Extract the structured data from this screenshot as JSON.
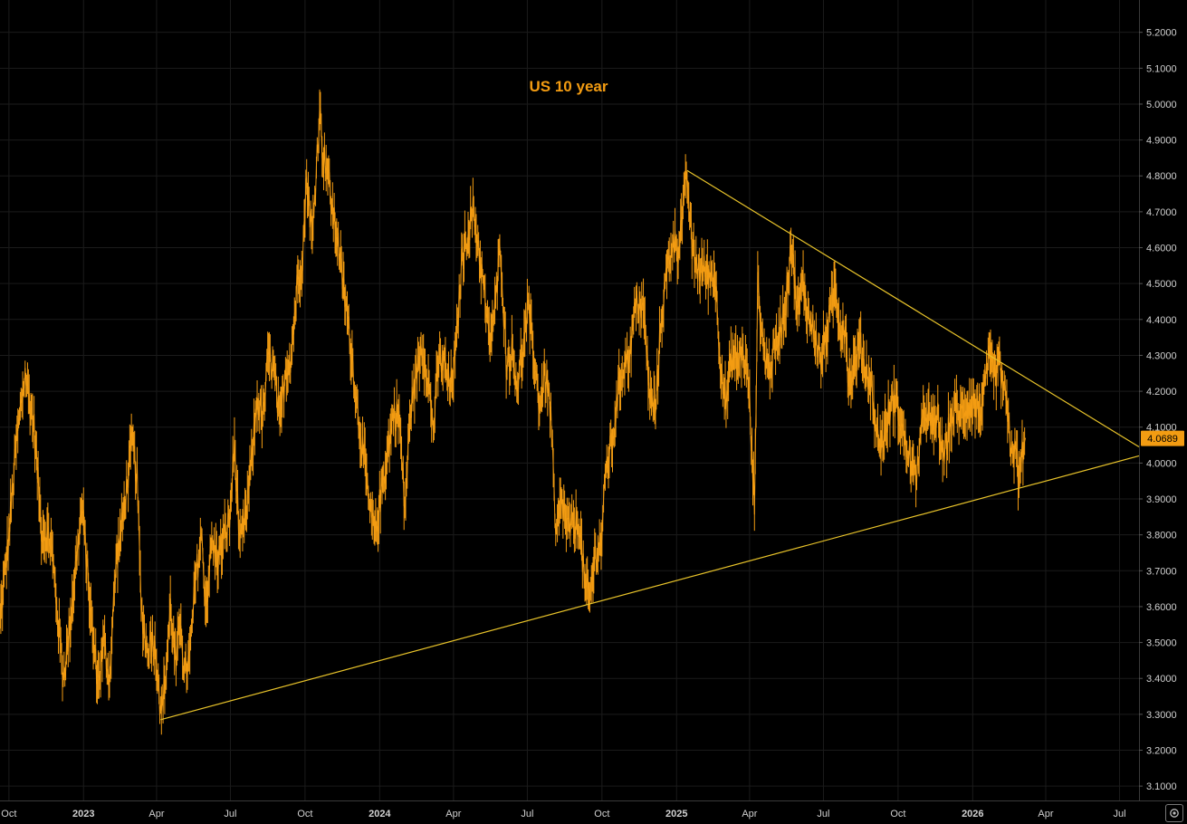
{
  "colors": {
    "background": "#000000",
    "grid": "#1b1b1b",
    "price_line": "#f39c12",
    "trendline": "#e8c32a",
    "title": "#f39c12",
    "last_price_bg": "#f39c12",
    "last_price_text": "#000000"
  },
  "chart_data": {
    "type": "line",
    "title": "US 10 year",
    "xlabel": "",
    "ylabel": "",
    "ylim": [
      3.06,
      5.29
    ],
    "xlim": [
      "2022-09-20",
      "2026-07-25"
    ],
    "y_ticks": [
      "3.1000",
      "3.2000",
      "3.3000",
      "3.4000",
      "3.5000",
      "3.6000",
      "3.7000",
      "3.8000",
      "3.9000",
      "4.0000",
      "4.1000",
      "4.2000",
      "4.3000",
      "4.4000",
      "4.5000",
      "4.6000",
      "4.7000",
      "4.8000",
      "4.9000",
      "5.0000",
      "5.1000",
      "5.2000"
    ],
    "x_ticks": [
      {
        "date": "2022-10-01",
        "label": "Oct",
        "bold": false
      },
      {
        "date": "2023-01-01",
        "label": "2023",
        "bold": true
      },
      {
        "date": "2023-04-01",
        "label": "Apr",
        "bold": false
      },
      {
        "date": "2023-07-01",
        "label": "Jul",
        "bold": false
      },
      {
        "date": "2023-10-01",
        "label": "Oct",
        "bold": false
      },
      {
        "date": "2024-01-01",
        "label": "2024",
        "bold": true
      },
      {
        "date": "2024-04-01",
        "label": "Apr",
        "bold": false
      },
      {
        "date": "2024-07-01",
        "label": "Jul",
        "bold": false
      },
      {
        "date": "2024-10-01",
        "label": "Oct",
        "bold": false
      },
      {
        "date": "2025-01-01",
        "label": "2025",
        "bold": true
      },
      {
        "date": "2025-04-01",
        "label": "Apr",
        "bold": false
      },
      {
        "date": "2025-07-01",
        "label": "Jul",
        "bold": false
      },
      {
        "date": "2025-10-01",
        "label": "Oct",
        "bold": false
      },
      {
        "date": "2026-01-01",
        "label": "2026",
        "bold": true
      },
      {
        "date": "2026-04-01",
        "label": "Apr",
        "bold": false
      },
      {
        "date": "2026-07-01",
        "label": "Jul",
        "bold": false
      }
    ],
    "last_value": "4.0689",
    "series": [
      {
        "name": "US 10 year",
        "points": [
          [
            "2022-09-20",
            3.56
          ],
          [
            "2022-10-01",
            3.8
          ],
          [
            "2022-10-10",
            4.05
          ],
          [
            "2022-10-21",
            4.25
          ],
          [
            "2022-11-01",
            4.1
          ],
          [
            "2022-11-10",
            3.82
          ],
          [
            "2022-11-22",
            3.78
          ],
          [
            "2022-12-01",
            3.55
          ],
          [
            "2022-12-07",
            3.41
          ],
          [
            "2022-12-13",
            3.5
          ],
          [
            "2022-12-20",
            3.66
          ],
          [
            "2022-12-30",
            3.88
          ],
          [
            "2023-01-05",
            3.72
          ],
          [
            "2023-01-12",
            3.52
          ],
          [
            "2023-01-19",
            3.39
          ],
          [
            "2023-01-26",
            3.5
          ],
          [
            "2023-02-02",
            3.4
          ],
          [
            "2023-02-10",
            3.72
          ],
          [
            "2023-02-17",
            3.82
          ],
          [
            "2023-02-24",
            3.95
          ],
          [
            "2023-03-02",
            4.06
          ],
          [
            "2023-03-08",
            3.96
          ],
          [
            "2023-03-13",
            3.6
          ],
          [
            "2023-03-20",
            3.48
          ],
          [
            "2023-03-27",
            3.52
          ],
          [
            "2023-04-03",
            3.42
          ],
          [
            "2023-04-06",
            3.29
          ],
          [
            "2023-04-12",
            3.4
          ],
          [
            "2023-04-18",
            3.6
          ],
          [
            "2023-04-25",
            3.43
          ],
          [
            "2023-05-01",
            3.58
          ],
          [
            "2023-05-05",
            3.4
          ],
          [
            "2023-05-12",
            3.46
          ],
          [
            "2023-05-19",
            3.67
          ],
          [
            "2023-05-26",
            3.8
          ],
          [
            "2023-06-01",
            3.6
          ],
          [
            "2023-06-08",
            3.78
          ],
          [
            "2023-06-15",
            3.73
          ],
          [
            "2023-06-22",
            3.78
          ],
          [
            "2023-06-30",
            3.84
          ],
          [
            "2023-07-06",
            4.05
          ],
          [
            "2023-07-13",
            3.76
          ],
          [
            "2023-07-20",
            3.85
          ],
          [
            "2023-07-27",
            4.0
          ],
          [
            "2023-08-03",
            4.18
          ],
          [
            "2023-08-10",
            4.12
          ],
          [
            "2023-08-17",
            4.3
          ],
          [
            "2023-08-24",
            4.25
          ],
          [
            "2023-08-31",
            4.1
          ],
          [
            "2023-09-07",
            4.26
          ],
          [
            "2023-09-14",
            4.3
          ],
          [
            "2023-09-21",
            4.49
          ],
          [
            "2023-09-28",
            4.58
          ],
          [
            "2023-10-03",
            4.8
          ],
          [
            "2023-10-10",
            4.62
          ],
          [
            "2023-10-19",
            4.99
          ],
          [
            "2023-10-23",
            4.86
          ],
          [
            "2023-10-27",
            4.84
          ],
          [
            "2023-11-01",
            4.75
          ],
          [
            "2023-11-06",
            4.67
          ],
          [
            "2023-11-10",
            4.63
          ],
          [
            "2023-11-15",
            4.53
          ],
          [
            "2023-11-22",
            4.41
          ],
          [
            "2023-11-29",
            4.27
          ],
          [
            "2023-12-06",
            4.12
          ],
          [
            "2023-12-13",
            4.01
          ],
          [
            "2023-12-20",
            3.86
          ],
          [
            "2023-12-27",
            3.8
          ],
          [
            "2024-01-03",
            3.92
          ],
          [
            "2024-01-10",
            4.02
          ],
          [
            "2024-01-18",
            4.14
          ],
          [
            "2024-01-25",
            4.13
          ],
          [
            "2024-02-01",
            3.87
          ],
          [
            "2024-02-08",
            4.15
          ],
          [
            "2024-02-15",
            4.24
          ],
          [
            "2024-02-22",
            4.33
          ],
          [
            "2024-02-29",
            4.25
          ],
          [
            "2024-03-07",
            4.09
          ],
          [
            "2024-03-14",
            4.29
          ],
          [
            "2024-03-21",
            4.27
          ],
          [
            "2024-03-28",
            4.2
          ],
          [
            "2024-04-04",
            4.31
          ],
          [
            "2024-04-11",
            4.56
          ],
          [
            "2024-04-18",
            4.64
          ],
          [
            "2024-04-25",
            4.7
          ],
          [
            "2024-05-01",
            4.62
          ],
          [
            "2024-05-08",
            4.49
          ],
          [
            "2024-05-15",
            4.34
          ],
          [
            "2024-05-22",
            4.42
          ],
          [
            "2024-05-29",
            4.61
          ],
          [
            "2024-06-05",
            4.28
          ],
          [
            "2024-06-12",
            4.31
          ],
          [
            "2024-06-19",
            4.22
          ],
          [
            "2024-06-26",
            4.32
          ],
          [
            "2024-07-02",
            4.43
          ],
          [
            "2024-07-09",
            4.3
          ],
          [
            "2024-07-16",
            4.16
          ],
          [
            "2024-07-23",
            4.25
          ],
          [
            "2024-07-30",
            4.14
          ],
          [
            "2024-08-05",
            3.78
          ],
          [
            "2024-08-12",
            3.9
          ],
          [
            "2024-08-19",
            3.82
          ],
          [
            "2024-08-26",
            3.82
          ],
          [
            "2024-09-03",
            3.84
          ],
          [
            "2024-09-10",
            3.65
          ],
          [
            "2024-09-16",
            3.62
          ],
          [
            "2024-09-23",
            3.75
          ],
          [
            "2024-09-30",
            3.78
          ],
          [
            "2024-10-07",
            4.0
          ],
          [
            "2024-10-14",
            4.06
          ],
          [
            "2024-10-21",
            4.2
          ],
          [
            "2024-10-28",
            4.28
          ],
          [
            "2024-11-04",
            4.3
          ],
          [
            "2024-11-11",
            4.43
          ],
          [
            "2024-11-15",
            4.45
          ],
          [
            "2024-11-22",
            4.41
          ],
          [
            "2024-11-29",
            4.18
          ],
          [
            "2024-12-06",
            4.15
          ],
          [
            "2024-12-13",
            4.4
          ],
          [
            "2024-12-20",
            4.53
          ],
          [
            "2024-12-27",
            4.62
          ],
          [
            "2025-01-03",
            4.6
          ],
          [
            "2025-01-08",
            4.69
          ],
          [
            "2025-01-14",
            4.79
          ],
          [
            "2025-01-20",
            4.6
          ],
          [
            "2025-01-27",
            4.54
          ],
          [
            "2025-02-03",
            4.54
          ],
          [
            "2025-02-10",
            4.52
          ],
          [
            "2025-02-17",
            4.53
          ],
          [
            "2025-02-24",
            4.29
          ],
          [
            "2025-03-03",
            4.16
          ],
          [
            "2025-03-10",
            4.3
          ],
          [
            "2025-03-17",
            4.28
          ],
          [
            "2025-03-24",
            4.31
          ],
          [
            "2025-03-31",
            4.22
          ],
          [
            "2025-04-04",
            4.0
          ],
          [
            "2025-04-07",
            3.9
          ],
          [
            "2025-04-11",
            4.49
          ],
          [
            "2025-04-18",
            4.32
          ],
          [
            "2025-04-25",
            4.26
          ],
          [
            "2025-05-02",
            4.31
          ],
          [
            "2025-05-09",
            4.38
          ],
          [
            "2025-05-16",
            4.45
          ],
          [
            "2025-05-22",
            4.62
          ],
          [
            "2025-05-30",
            4.42
          ],
          [
            "2025-06-06",
            4.5
          ],
          [
            "2025-06-13",
            4.4
          ],
          [
            "2025-06-20",
            4.37
          ],
          [
            "2025-06-27",
            4.28
          ],
          [
            "2025-07-03",
            4.34
          ],
          [
            "2025-07-10",
            4.42
          ],
          [
            "2025-07-15",
            4.49
          ],
          [
            "2025-07-22",
            4.38
          ],
          [
            "2025-07-29",
            4.37
          ],
          [
            "2025-08-01",
            4.22
          ],
          [
            "2025-08-08",
            4.27
          ],
          [
            "2025-08-15",
            4.33
          ],
          [
            "2025-08-22",
            4.26
          ],
          [
            "2025-08-29",
            4.22
          ],
          [
            "2025-09-05",
            4.07
          ],
          [
            "2025-09-12",
            4.06
          ],
          [
            "2025-09-19",
            4.13
          ],
          [
            "2025-09-26",
            4.18
          ],
          [
            "2025-10-03",
            4.13
          ],
          [
            "2025-10-10",
            4.05
          ],
          [
            "2025-10-17",
            4.0
          ],
          [
            "2025-10-22",
            3.95
          ],
          [
            "2025-10-29",
            4.07
          ],
          [
            "2025-11-05",
            4.16
          ],
          [
            "2025-11-12",
            4.09
          ],
          [
            "2025-11-19",
            4.13
          ],
          [
            "2025-11-26",
            4.0
          ],
          [
            "2025-12-03",
            4.1
          ],
          [
            "2025-12-10",
            4.15
          ],
          [
            "2025-12-17",
            4.13
          ],
          [
            "2025-12-24",
            4.16
          ],
          [
            "2025-12-31",
            4.17
          ],
          [
            "2026-01-07",
            4.15
          ],
          [
            "2026-01-14",
            4.16
          ],
          [
            "2026-01-20",
            4.29
          ],
          [
            "2026-01-27",
            4.24
          ],
          [
            "2026-02-03",
            4.27
          ],
          [
            "2026-02-10",
            4.18
          ],
          [
            "2026-02-17",
            4.05
          ],
          [
            "2026-02-24",
            4.02
          ],
          [
            "2026-02-27",
            3.94
          ],
          [
            "2026-03-03",
            4.03
          ],
          [
            "2026-03-07",
            4.07
          ]
        ]
      }
    ],
    "trendlines": [
      {
        "from": [
          "2023-04-06",
          3.285
        ],
        "to": [
          "2026-07-25",
          4.02
        ]
      },
      {
        "from": [
          "2025-01-14",
          4.815
        ],
        "to": [
          "2026-07-25",
          4.045
        ]
      }
    ]
  },
  "controls": {
    "settings_icon": "gear-icon"
  }
}
